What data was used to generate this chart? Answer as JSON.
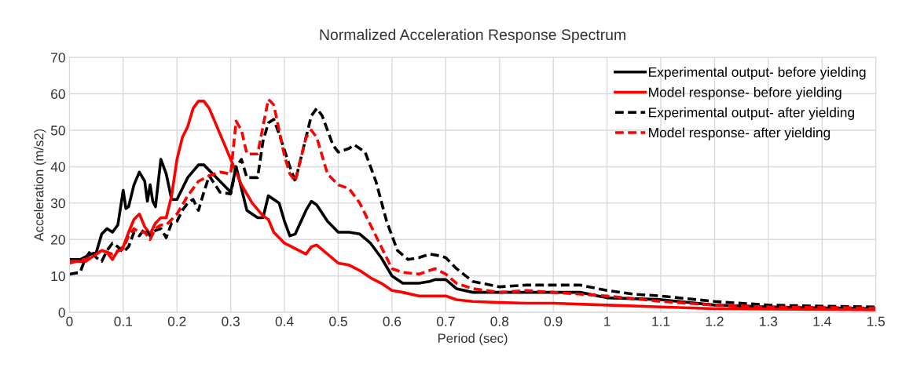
{
  "chart_data": {
    "type": "line",
    "title": "Normalized Acceleration Response Spectrum",
    "xlabel": "Period (sec)",
    "ylabel": "Acceleration (m/s2)",
    "xlim": [
      0,
      1.5
    ],
    "ylim": [
      0,
      70
    ],
    "xticks": [
      0,
      0.1,
      0.2,
      0.3,
      0.4,
      0.5,
      0.6,
      0.7,
      0.8,
      0.9,
      1,
      1.1,
      1.2,
      1.3,
      1.4,
      1.5
    ],
    "yticks": [
      0,
      10,
      20,
      30,
      40,
      50,
      60,
      70
    ],
    "grid": true,
    "legend": "top right",
    "marker": "none",
    "series": [
      {
        "name": "Experimental output- before yielding",
        "color": "#000000",
        "line_style": "solid",
        "x": [
          0,
          0.02,
          0.04,
          0.05,
          0.06,
          0.07,
          0.08,
          0.09,
          0.1,
          0.105,
          0.11,
          0.12,
          0.13,
          0.14,
          0.145,
          0.15,
          0.155,
          0.16,
          0.17,
          0.18,
          0.19,
          0.2,
          0.22,
          0.24,
          0.25,
          0.27,
          0.3,
          0.31,
          0.32,
          0.33,
          0.35,
          0.36,
          0.37,
          0.38,
          0.39,
          0.4,
          0.41,
          0.42,
          0.44,
          0.45,
          0.46,
          0.48,
          0.5,
          0.52,
          0.54,
          0.56,
          0.58,
          0.6,
          0.62,
          0.65,
          0.67,
          0.68,
          0.7,
          0.72,
          0.75,
          0.8,
          0.85,
          0.9,
          0.95,
          1.0,
          1.1,
          1.2,
          1.3,
          1.4,
          1.5
        ],
        "values": [
          14.5,
          14.5,
          16,
          16.5,
          21.5,
          23,
          22,
          24,
          33.5,
          28.5,
          29,
          35,
          38.5,
          36,
          30.5,
          35,
          30.5,
          29,
          42,
          38,
          31,
          31,
          37,
          40.5,
          40.5,
          37.5,
          33,
          40,
          34,
          28,
          26,
          26,
          32,
          31,
          30,
          25,
          21,
          21.5,
          28,
          30.5,
          29.5,
          25,
          22,
          22,
          21.5,
          19,
          15,
          10,
          8,
          8,
          8.5,
          9,
          9,
          6.5,
          5.5,
          5.5,
          5.5,
          5.5,
          5.5,
          4,
          3.5,
          2,
          1.5,
          1.2,
          1.0
        ]
      },
      {
        "name": "Model response- before yielding",
        "color": "#ff0000",
        "line_style": "solid",
        "x": [
          0,
          0.03,
          0.06,
          0.07,
          0.08,
          0.09,
          0.1,
          0.11,
          0.12,
          0.13,
          0.14,
          0.15,
          0.16,
          0.17,
          0.18,
          0.19,
          0.2,
          0.21,
          0.22,
          0.23,
          0.24,
          0.25,
          0.26,
          0.28,
          0.3,
          0.32,
          0.34,
          0.36,
          0.37,
          0.38,
          0.4,
          0.42,
          0.44,
          0.45,
          0.46,
          0.48,
          0.5,
          0.52,
          0.54,
          0.56,
          0.58,
          0.6,
          0.62,
          0.65,
          0.68,
          0.7,
          0.72,
          0.75,
          0.8,
          0.85,
          0.9,
          1.0,
          1.1,
          1.2,
          1.5
        ],
        "values": [
          14,
          14,
          17,
          16.5,
          14.5,
          17,
          18,
          22,
          25.5,
          27,
          23.5,
          21.5,
          24.5,
          26,
          26,
          32,
          42,
          48,
          51,
          56,
          58,
          58,
          56,
          49,
          42,
          35,
          30,
          26.5,
          25.5,
          22,
          19,
          17.5,
          16,
          18,
          18.5,
          16,
          13.5,
          13,
          11.5,
          9.5,
          8,
          6,
          5.5,
          4.5,
          4.5,
          4.5,
          3.5,
          3,
          2.7,
          2.5,
          2.5,
          2,
          1.5,
          1.0,
          0.7
        ]
      },
      {
        "name": "Experimental output- after yielding",
        "color": "#000000",
        "line_style": "dashed",
        "x": [
          0,
          0.02,
          0.03,
          0.04,
          0.05,
          0.06,
          0.07,
          0.08,
          0.09,
          0.1,
          0.11,
          0.12,
          0.13,
          0.14,
          0.15,
          0.16,
          0.17,
          0.18,
          0.19,
          0.2,
          0.21,
          0.22,
          0.23,
          0.24,
          0.25,
          0.26,
          0.28,
          0.3,
          0.31,
          0.32,
          0.33,
          0.35,
          0.36,
          0.37,
          0.38,
          0.39,
          0.41,
          0.42,
          0.44,
          0.45,
          0.46,
          0.47,
          0.49,
          0.5,
          0.52,
          0.53,
          0.55,
          0.57,
          0.59,
          0.61,
          0.63,
          0.65,
          0.67,
          0.69,
          0.7,
          0.72,
          0.75,
          0.8,
          0.85,
          0.9,
          0.95,
          1.0,
          1.05,
          1.1,
          1.2,
          1.3,
          1.4,
          1.5
        ],
        "values": [
          10.5,
          11,
          15,
          17,
          15,
          14,
          17,
          19,
          18,
          16.5,
          18,
          22,
          21,
          23,
          21,
          22.5,
          23,
          20.5,
          24.5,
          25,
          28,
          30,
          31,
          28,
          33,
          37.5,
          33,
          32.5,
          40,
          42,
          37,
          37,
          47,
          52,
          53,
          49,
          40,
          36,
          48,
          54,
          56,
          54,
          46,
          44,
          45,
          46,
          44,
          36,
          25,
          17,
          14.5,
          15,
          16,
          15.5,
          15,
          12,
          8.5,
          7,
          7.5,
          7.5,
          7.5,
          6,
          5,
          4.5,
          3,
          2,
          1.7,
          1.5
        ]
      },
      {
        "name": "Model response- after yielding",
        "color": "#ff0000",
        "line_style": "dashed",
        "x": [
          0,
          0.04,
          0.06,
          0.08,
          0.1,
          0.11,
          0.12,
          0.13,
          0.14,
          0.15,
          0.16,
          0.17,
          0.18,
          0.2,
          0.22,
          0.24,
          0.26,
          0.28,
          0.3,
          0.31,
          0.32,
          0.33,
          0.35,
          0.36,
          0.37,
          0.38,
          0.4,
          0.41,
          0.42,
          0.44,
          0.45,
          0.46,
          0.48,
          0.5,
          0.52,
          0.54,
          0.56,
          0.58,
          0.6,
          0.62,
          0.65,
          0.67,
          0.68,
          0.7,
          0.72,
          0.75,
          0.8,
          0.85,
          0.9,
          1.0,
          1.1,
          1.2,
          1.3,
          1.5
        ],
        "values": [
          13.5,
          15,
          17,
          16,
          17.5,
          21,
          23,
          22,
          22,
          20,
          23,
          24,
          24,
          27,
          32,
          36,
          37.5,
          38.5,
          38,
          52.5,
          50,
          43.5,
          43.5,
          51,
          58.5,
          57,
          43,
          38,
          36,
          48,
          50,
          48,
          38,
          35,
          34,
          30,
          24,
          18,
          12,
          11,
          10.5,
          11.5,
          12,
          10.5,
          8,
          6.5,
          5.5,
          6,
          5.5,
          4.5,
          3,
          2,
          1.5,
          1.2
        ]
      }
    ]
  }
}
